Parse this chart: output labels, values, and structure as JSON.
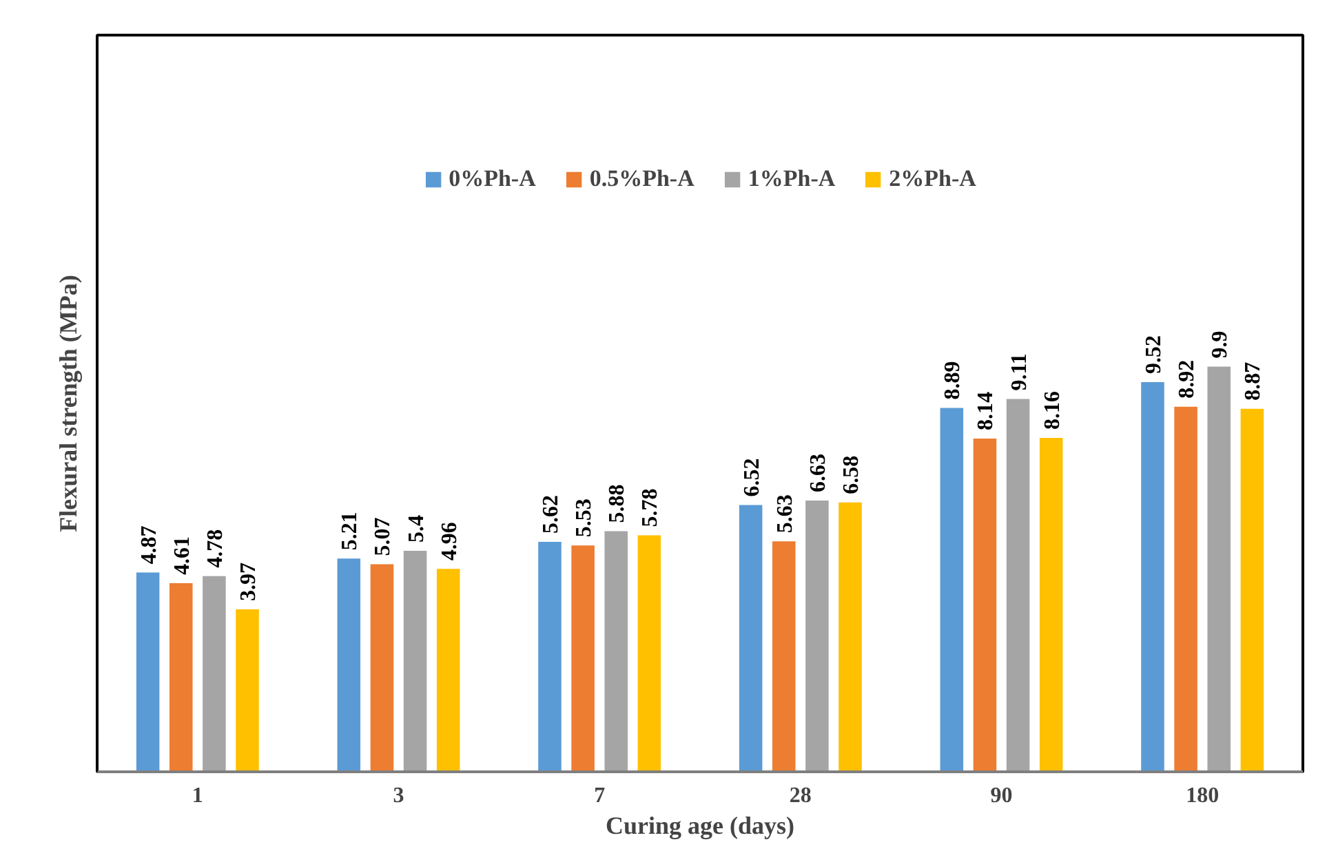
{
  "chart_data": {
    "type": "bar",
    "xlabel": "Curing age (days)",
    "ylabel": "Flexural strength (MPa)",
    "categories": [
      "1",
      "3",
      "7",
      "28",
      "90",
      "180"
    ],
    "series": [
      {
        "name": "0%Ph-A",
        "color": "#5b9bd5",
        "values": [
          4.87,
          5.21,
          5.62,
          6.52,
          8.89,
          9.52
        ]
      },
      {
        "name": "0.5%Ph-A",
        "color": "#ed7d31",
        "values": [
          4.61,
          5.07,
          5.53,
          5.63,
          8.14,
          8.92
        ]
      },
      {
        "name": "1%Ph-A",
        "color": "#a5a5a5",
        "values": [
          4.78,
          5.4,
          5.88,
          6.63,
          9.11,
          9.9
        ]
      },
      {
        "name": "2%Ph-A",
        "color": "#ffc000",
        "values": [
          3.97,
          4.96,
          5.78,
          6.58,
          8.16,
          8.87
        ]
      }
    ],
    "ylim": [
      0,
      18
    ],
    "tick_labels": "x",
    "data_labels": true,
    "grid": false,
    "legend": "top"
  }
}
